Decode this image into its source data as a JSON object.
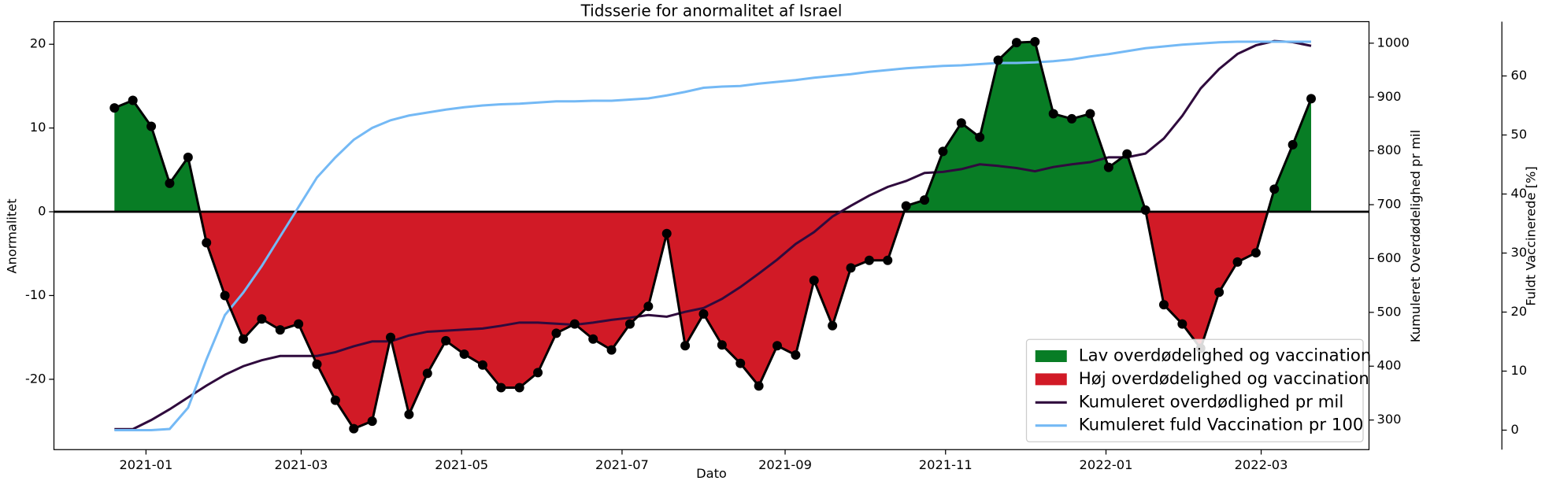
{
  "chart_data": {
    "type": "anomaly",
    "title": "Tidsserie for anormalitet af Israel",
    "x_label": "Dato",
    "y_label": "Anormalitet",
    "y2_label": "Kumuleret Overdødelighed pr mil",
    "y3_label": "Fuldt Vaccinerede [%]",
    "x": [
      "2020-12-20",
      "2020-12-27",
      "2021-01-03",
      "2021-01-10",
      "2021-01-17",
      "2021-01-24",
      "2021-01-31",
      "2021-02-07",
      "2021-02-14",
      "2021-02-21",
      "2021-02-28",
      "2021-03-07",
      "2021-03-14",
      "2021-03-21",
      "2021-03-28",
      "2021-04-04",
      "2021-04-11",
      "2021-04-18",
      "2021-04-25",
      "2021-05-02",
      "2021-05-09",
      "2021-05-16",
      "2021-05-23",
      "2021-05-30",
      "2021-06-06",
      "2021-06-13",
      "2021-06-20",
      "2021-06-27",
      "2021-07-04",
      "2021-07-11",
      "2021-07-18",
      "2021-07-25",
      "2021-08-01",
      "2021-08-08",
      "2021-08-15",
      "2021-08-22",
      "2021-08-29",
      "2021-09-05",
      "2021-09-12",
      "2021-09-19",
      "2021-09-26",
      "2021-10-03",
      "2021-10-10",
      "2021-10-17",
      "2021-10-24",
      "2021-10-31",
      "2021-11-07",
      "2021-11-14",
      "2021-11-21",
      "2021-11-28",
      "2021-12-05",
      "2021-12-12",
      "2021-12-19",
      "2021-12-26",
      "2022-01-02",
      "2022-01-09",
      "2022-01-16",
      "2022-01-23",
      "2022-01-30",
      "2022-02-06",
      "2022-02-13",
      "2022-02-20",
      "2022-02-27",
      "2022-03-06",
      "2022-03-13",
      "2022-03-20"
    ],
    "values": [
      12.4,
      13.3,
      10.2,
      3.4,
      6.5,
      -3.7,
      -10,
      -15.2,
      -12.8,
      -14.1,
      -13.4,
      -18.2,
      -22.5,
      -25.9,
      -25.0,
      -15.0,
      -24.2,
      -19.3,
      -15.4,
      -17.0,
      -18.3,
      -21.0,
      -21.0,
      -19.2,
      -14.5,
      -13.4,
      -15.2,
      -16.5,
      -13.4,
      -11.3,
      -2.6,
      -16.0,
      -12.2,
      -15.9,
      -18.1,
      -20.8,
      -16.0,
      -17.1,
      -8.2,
      -13.6,
      -6.7,
      -5.8,
      -5.8,
      0.7,
      1.4,
      7.2,
      10.6,
      8.9,
      18.1,
      20.2,
      20.3,
      11.7,
      11.1,
      11.7,
      5.3,
      6.9,
      0.2,
      -11.1,
      -13.4,
      -16.3,
      -9.6,
      -6.0,
      -4.9,
      2.7,
      8.0,
      13.5
    ],
    "line_color": "#000000",
    "reference_line": 0,
    "fills": [
      {
        "name": "Lav overdødelighed og vaccination",
        "color": "#087d25",
        "side": "positive"
      },
      {
        "name": "Høj overdødelighed og vaccination",
        "color": "#d11a26",
        "side": "negative"
      }
    ],
    "series": [
      {
        "name": "Kumuleret overdødlighed pr mil",
        "color": "#2f0a3d",
        "axis": "y2",
        "values": [
          283,
          283,
          300,
          320,
          342,
          364,
          384,
          400,
          411,
          419,
          419,
          419,
          426,
          437,
          446,
          446,
          457,
          464,
          466,
          468,
          470,
          475,
          481,
          481,
          479,
          477,
          481,
          486,
          490,
          495,
          492,
          501,
          508,
          525,
          547,
          572,
          598,
          627,
          649,
          678,
          698,
          717,
          733,
          744,
          759,
          761,
          766,
          775,
          772,
          768,
          762,
          770,
          775,
          779,
          788,
          788,
          795,
          823,
          865,
          916,
          952,
          980,
          996,
          1004,
          1002,
          995
        ]
      },
      {
        "name": "Kumuleret fuld Vaccination pr 100",
        "color": "#74b9f5",
        "axis": "y3",
        "values": [
          0,
          0,
          0,
          0.2,
          3.8,
          12.0,
          19.5,
          23.3,
          27.8,
          32.8,
          37.8,
          42.8,
          46.2,
          49.2,
          51.2,
          52.5,
          53.3,
          53.8,
          54.3,
          54.7,
          55.0,
          55.2,
          55.3,
          55.5,
          55.7,
          55.7,
          55.8,
          55.8,
          56.0,
          56.2,
          56.7,
          57.3,
          58.0,
          58.2,
          58.3,
          58.7,
          59.0,
          59.3,
          59.7,
          60.0,
          60.3,
          60.7,
          61.0,
          61.3,
          61.5,
          61.7,
          61.8,
          62.0,
          62.2,
          62.2,
          62.3,
          62.5,
          62.8,
          63.3,
          63.7,
          64.2,
          64.7,
          65.0,
          65.3,
          65.5,
          65.7,
          65.8,
          65.8,
          65.8,
          65.8,
          65.8
        ]
      }
    ],
    "xlim": [
      "2020-11-27",
      "2022-04-11"
    ],
    "xticks": [
      {
        "value": "2021-01-01",
        "label": "2021-01"
      },
      {
        "value": "2021-03-01",
        "label": "2021-03"
      },
      {
        "value": "2021-05-01",
        "label": "2021-05"
      },
      {
        "value": "2021-07-01",
        "label": "2021-07"
      },
      {
        "value": "2021-09-01",
        "label": "2021-09"
      },
      {
        "value": "2021-11-01",
        "label": "2021-11"
      },
      {
        "value": "2022-01-01",
        "label": "2022-01"
      },
      {
        "value": "2022-03-01",
        "label": "2022-03"
      }
    ],
    "ylim": [
      -28.4,
      22.7
    ],
    "yticks": [
      -20,
      -10,
      0,
      10,
      20
    ],
    "y2lim": [
      245,
      1040
    ],
    "y2ticks": [
      300,
      400,
      500,
      600,
      700,
      800,
      900,
      1000
    ],
    "y3lim": [
      -3.3,
      69.2
    ],
    "y3ticks": [
      0,
      10,
      20,
      30,
      40,
      50,
      60
    ],
    "legend": "lower right"
  }
}
